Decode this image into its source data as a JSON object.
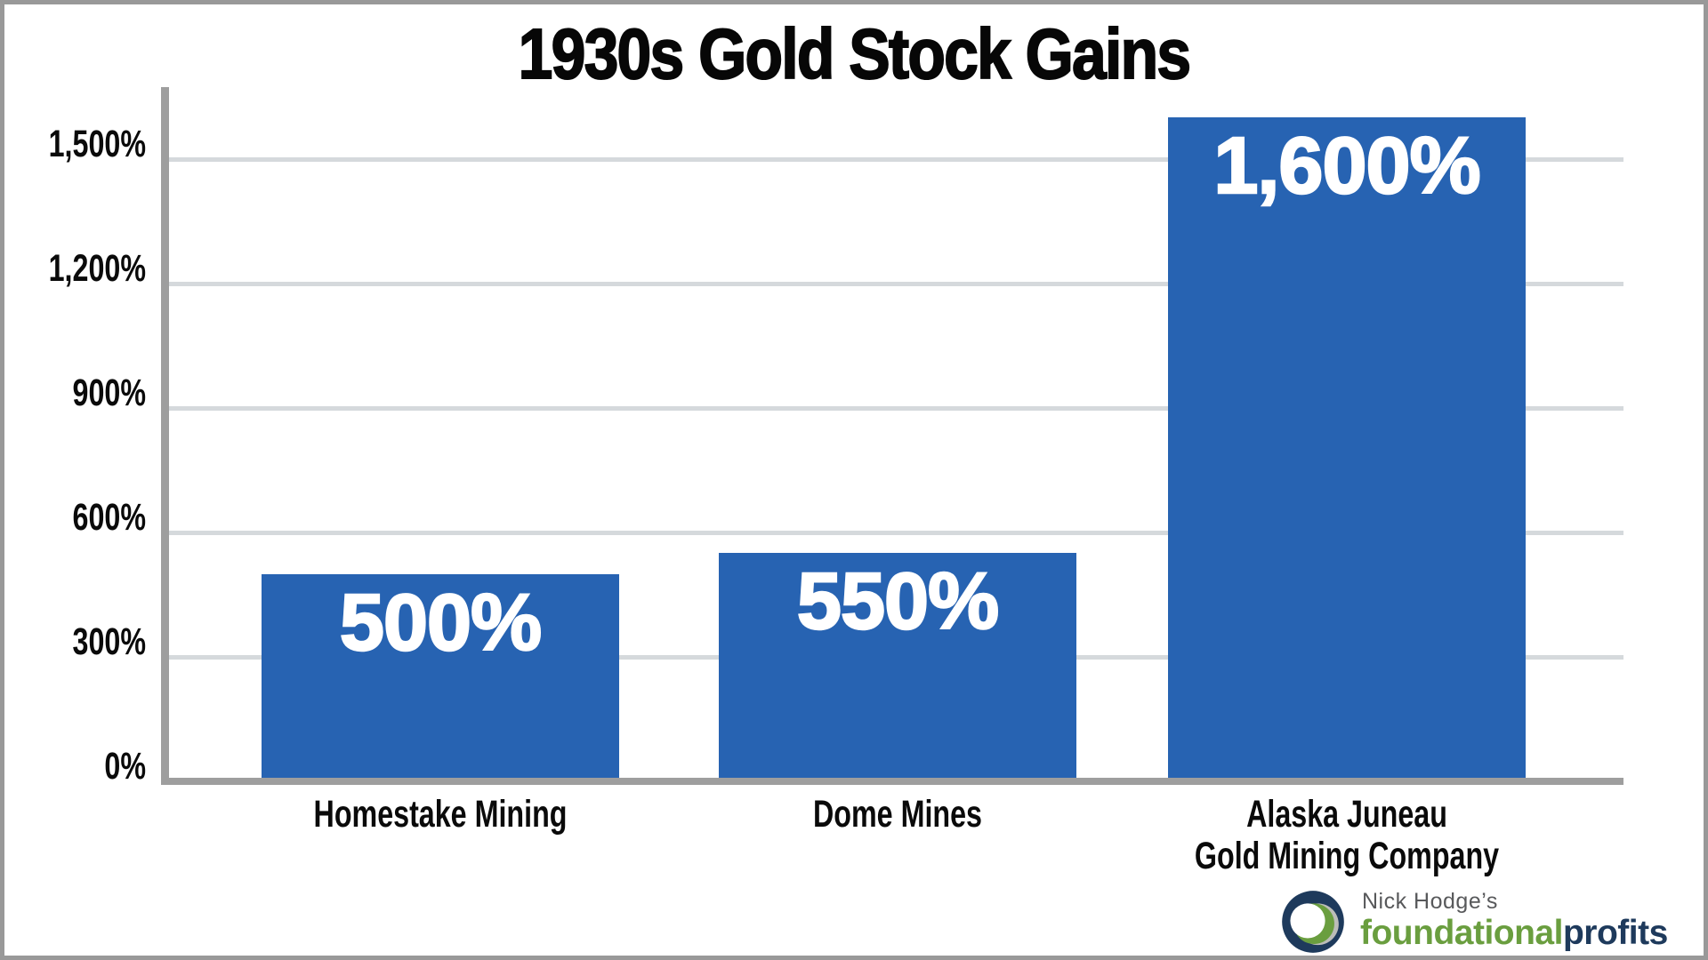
{
  "chart_data": {
    "type": "bar",
    "title": "1930s Gold Stock Gains",
    "categories": [
      "Homestake Mining",
      "Dome Mines",
      "Alaska Juneau\nGold Mining Company"
    ],
    "values": [
      500,
      550,
      1600
    ],
    "value_labels": [
      "500%",
      "550%",
      "1,600%"
    ],
    "yticks": [
      {
        "value": 0,
        "label": "0%"
      },
      {
        "value": 300,
        "label": "300%"
      },
      {
        "value": 600,
        "label": "600%"
      },
      {
        "value": 900,
        "label": "900%"
      },
      {
        "value": 1200,
        "label": "1,200%"
      },
      {
        "value": 1500,
        "label": "1,500%"
      }
    ],
    "ylim": [
      0,
      1700
    ],
    "grid": "horizontal",
    "legend": "none",
    "bar_color": "#2763b2",
    "value_label_color": "#ffffff",
    "axis_color": "#9e9e9e",
    "gridline_color": "#d5d9dc"
  },
  "footer_logo": {
    "tagline": "Nick Hodge’s",
    "brand_part_green": "foundational",
    "brand_part_navy": "profits",
    "colors": {
      "navy": "#1e3a5c",
      "green": "#6a9e3f",
      "gray_text": "#58595b",
      "silver": "#bcbdb9"
    }
  }
}
